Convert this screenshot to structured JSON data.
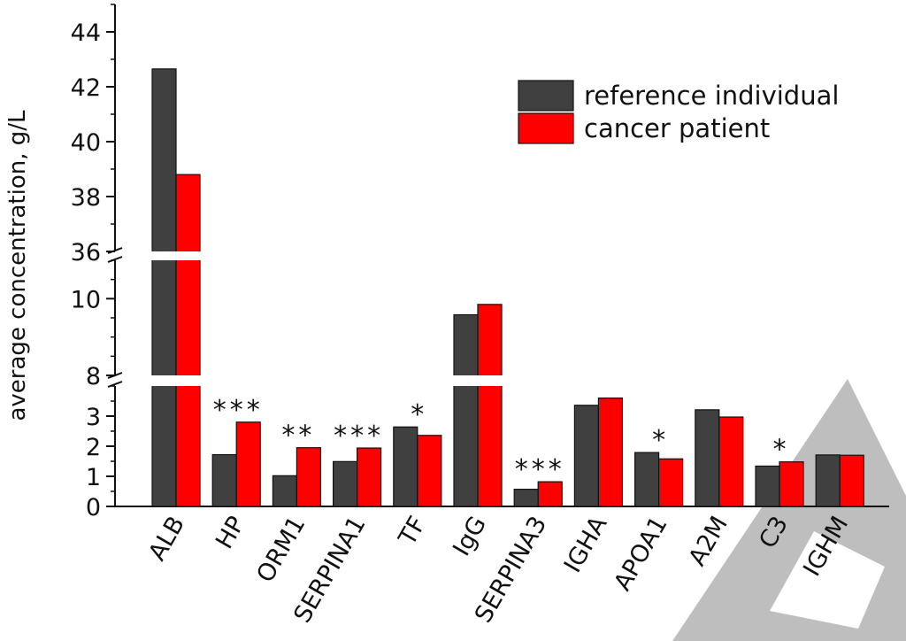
{
  "chart_data": {
    "type": "bar",
    "ylabel": "average concentration, g/L",
    "categories": [
      "ALB",
      "HP",
      "ORM1",
      "SERPINA1",
      "TF",
      "IgG",
      "SERPINA3",
      "IGHA",
      "APOA1",
      "A2M",
      "C3",
      "IGHM"
    ],
    "series": [
      {
        "name": "reference individual",
        "color": "#404040",
        "values": [
          42.65,
          1.72,
          1.02,
          1.49,
          2.64,
          9.58,
          0.57,
          3.36,
          1.79,
          3.21,
          1.34,
          1.71
        ]
      },
      {
        "name": "cancer patient",
        "color": "#ff0000",
        "values": [
          38.8,
          2.8,
          1.95,
          1.94,
          2.36,
          9.85,
          0.82,
          3.6,
          1.58,
          2.97,
          1.48,
          1.7
        ]
      }
    ],
    "significance": [
      "",
      "***",
      "**",
      "***",
      "*",
      "",
      "***",
      "",
      "*",
      "",
      "*",
      ""
    ],
    "axis_segments": [
      {
        "ylim": [
          0,
          4
        ],
        "ticks": [
          0,
          1,
          2,
          3
        ]
      },
      {
        "ylim": [
          8,
          11
        ],
        "ticks": [
          8,
          10
        ]
      },
      {
        "ylim": [
          36,
          45
        ],
        "ticks": [
          36,
          38,
          40,
          42,
          44
        ]
      }
    ],
    "legend_position": "top-right",
    "grid": false
  }
}
